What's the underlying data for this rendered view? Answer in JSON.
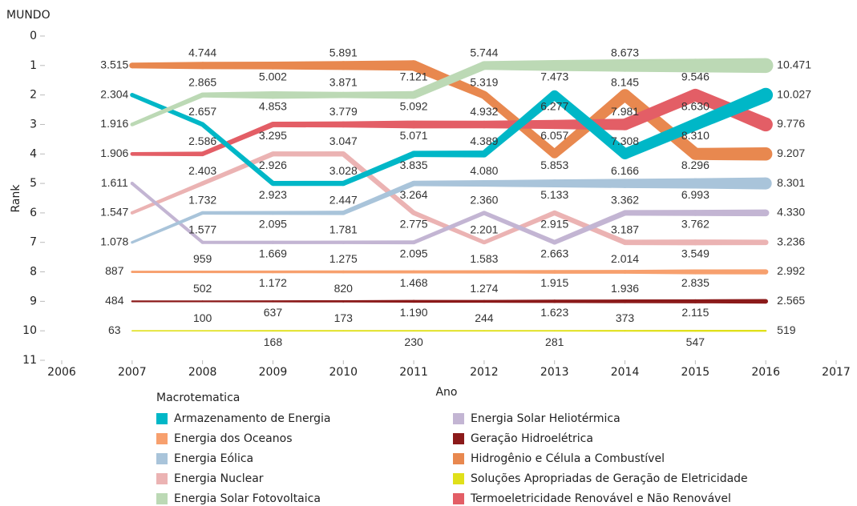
{
  "chart_data": {
    "type": "bump",
    "title": "MUNDO",
    "x_label": "Ano",
    "y_label": "Rank",
    "legend_title": "Macrotematica",
    "x": [
      2007,
      2008,
      2009,
      2010,
      2011,
      2012,
      2013,
      2014,
      2015,
      2016
    ],
    "xlim": [
      2006,
      2017
    ],
    "xticks": [
      2006,
      2007,
      2008,
      2009,
      2010,
      2011,
      2012,
      2013,
      2014,
      2015,
      2016,
      2017
    ],
    "ylim": [
      0,
      11
    ],
    "yticks": [
      0,
      1,
      2,
      3,
      4,
      5,
      6,
      7,
      8,
      9,
      10,
      11
    ],
    "y_inverted": true,
    "series": [
      {
        "name": "Armazenamento de Energia",
        "color": "#00b7c7",
        "values": [
          2,
          3,
          5,
          5,
          4,
          4,
          2,
          4,
          3,
          2
        ],
        "sizes": [
          2304,
          2657,
          2923,
          3028,
          3835,
          4389,
          6277,
          7308,
          8310,
          10027
        ],
        "size_labels": [
          "2.304",
          "2.657",
          "2.923",
          "3.028",
          "3.835",
          "4.389",
          "6.277",
          "7.308",
          "8.310",
          "10.027"
        ]
      },
      {
        "name": "Energia dos Oceanos",
        "color": "#f7a06e",
        "values": [
          8,
          8,
          8,
          8,
          8,
          8,
          8,
          8,
          8,
          8
        ],
        "sizes": [
          887,
          959,
          1172,
          1275,
          1468,
          1583,
          1915,
          2014,
          2835,
          2992
        ],
        "size_labels": [
          "887",
          "959",
          "1.172",
          "1.275",
          "1.468",
          "1.583",
          "1.915",
          "2.014",
          "2.835",
          "2.992"
        ]
      },
      {
        "name": "Energia Eólica",
        "color": "#a9c4da",
        "values": [
          7,
          6,
          6,
          6,
          5,
          5,
          5,
          5,
          5,
          5
        ],
        "sizes": [
          1078,
          1732,
          2095,
          2447,
          3264,
          4080,
          5133,
          6166,
          6993,
          8301
        ],
        "size_labels": [
          "1.078",
          "1.732",
          "2.095",
          "2.447",
          "3.264",
          "4.080",
          "5.133",
          "6.166",
          "6.993",
          "8.301"
        ]
      },
      {
        "name": "Energia Nuclear",
        "color": "#ebb3b3",
        "values": [
          6,
          5,
          4,
          4,
          6,
          7,
          6,
          7,
          7,
          7
        ],
        "sizes": [
          1547,
          2403,
          2926,
          3047,
          2775,
          2201,
          2915,
          3187,
          3549,
          3236
        ],
        "size_labels": [
          "1.547",
          "2.403",
          "2.926",
          "3.047",
          "2.775",
          "2.201",
          "2.915",
          "3.187",
          "3.549",
          "3.236"
        ]
      },
      {
        "name": "Energia Solar Fotovoltaica",
        "color": "#bcd9b5",
        "values": [
          3,
          2,
          2,
          2,
          2,
          1,
          1,
          1,
          1,
          1
        ],
        "sizes": [
          1916,
          2865,
          4853,
          3871,
          5092,
          5744,
          7473,
          8673,
          9546,
          10471
        ],
        "size_labels": [
          "1.916",
          "2.865",
          "4.853",
          "3.871",
          "5.092",
          "5.744",
          "7.473",
          "8.673",
          "9.546",
          "10.471"
        ]
      },
      {
        "name": "Energia Solar Heliotérmica",
        "color": "#c3b5d3",
        "values": [
          5,
          7,
          7,
          7,
          7,
          6,
          7,
          6,
          6,
          6
        ],
        "sizes": [
          1611,
          1577,
          1669,
          1781,
          2095,
          2360,
          2663,
          3362,
          3762,
          4330
        ],
        "size_labels": [
          "1.611",
          "1.577",
          "1.669",
          "1.781",
          "2.095",
          "2.360",
          "2.663",
          "3.362",
          "3.762",
          "4.330"
        ]
      },
      {
        "name": "Geração Hidroelétrica",
        "color": "#8b1a1a",
        "values": [
          9,
          9,
          9,
          9,
          9,
          9,
          9,
          9,
          9,
          9
        ],
        "sizes": [
          484,
          502,
          637,
          820,
          1190,
          1274,
          1623,
          1936,
          2115,
          2565
        ],
        "size_labels": [
          "484",
          "502",
          "637",
          "820",
          "1.190",
          "1.274",
          "1.623",
          "1.936",
          "2.115",
          "2.565"
        ]
      },
      {
        "name": "Hidrogênio e Célula a Combustível",
        "color": "#e8884f",
        "values": [
          1,
          1,
          1,
          1,
          1,
          2,
          4,
          2,
          4,
          4
        ],
        "sizes": [
          3515,
          4744,
          5002,
          5891,
          7121,
          5319,
          5853,
          8145,
          8296,
          9207
        ],
        "size_labels": [
          "3.515",
          "4.744",
          "5.002",
          "5.891",
          "7.121",
          "5.319",
          "5.853",
          "8.145",
          "8.296",
          "9.207"
        ]
      },
      {
        "name": "Soluções Apropriadas de Geração de Eletricidade",
        "color": "#e0e01a",
        "values": [
          10,
          10,
          10,
          10,
          10,
          10,
          10,
          10,
          10,
          10
        ],
        "sizes": [
          63,
          100,
          168,
          173,
          230,
          244,
          281,
          373,
          547,
          519
        ],
        "size_labels": [
          "63",
          "100",
          "168",
          "173",
          "230",
          "244",
          "281",
          "373",
          "547",
          "519"
        ]
      },
      {
        "name": "Termoeletricidade Renovável e Não Renovável",
        "color": "#e35e66",
        "values": [
          4,
          4,
          3,
          3,
          3,
          3,
          3,
          3,
          2,
          3
        ],
        "sizes": [
          1906,
          2586,
          3295,
          3779,
          5071,
          4932,
          6057,
          7981,
          8630,
          9776
        ],
        "size_labels": [
          "1.906",
          "2.586",
          "3.295",
          "3.779",
          "5.071",
          "4.932",
          "6.057",
          "7.981",
          "8.630",
          "9.776"
        ]
      }
    ]
  }
}
